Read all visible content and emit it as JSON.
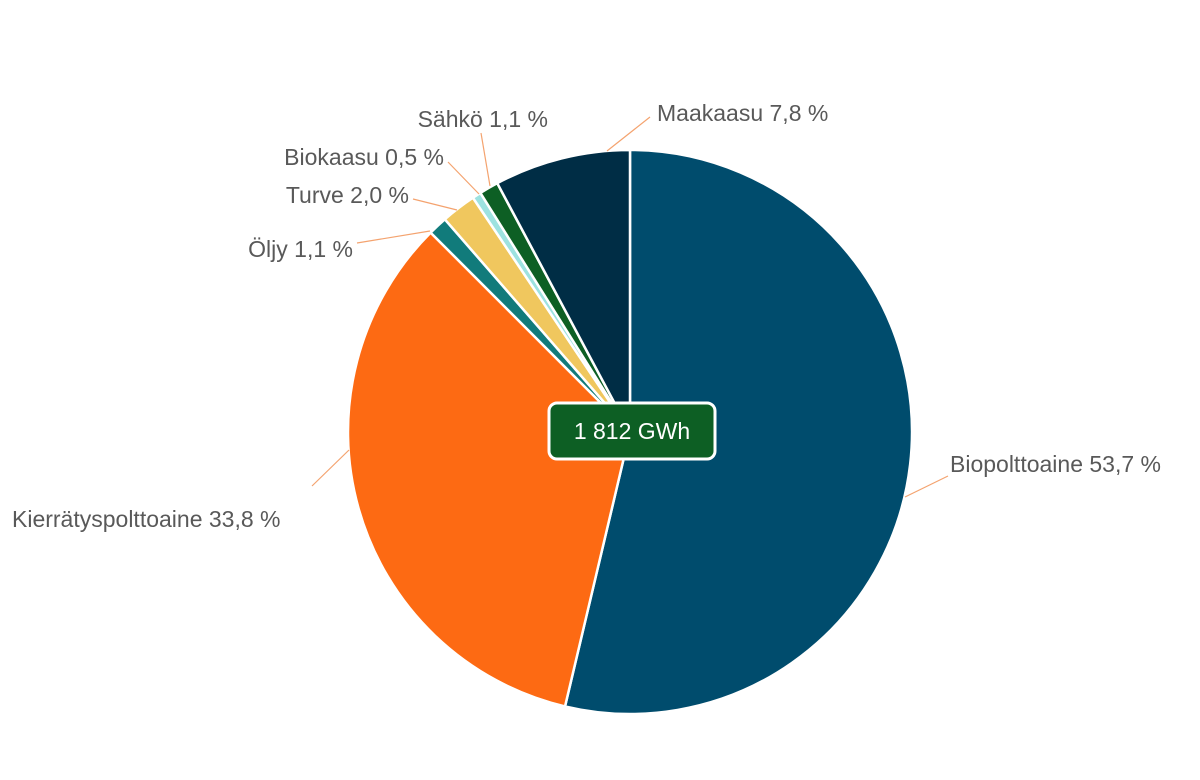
{
  "chart_data": {
    "type": "pie",
    "total_label": "1 812 GWh",
    "slices": [
      {
        "name": "Biopolttoaine",
        "value": 53.7,
        "label": "Biopolttoaine 53,7 %",
        "color": "#004c6d"
      },
      {
        "name": "Kierrätyspolttoaine",
        "value": 33.8,
        "label": "Kierrätyspolttoaine 33,8 %",
        "color": "#fd6a13"
      },
      {
        "name": "Öljy",
        "value": 1.1,
        "label": "Öljy 1,1 %",
        "color": "#117b7b"
      },
      {
        "name": "Turve",
        "value": 2.0,
        "label": "Turve 2,0 %",
        "color": "#f0c75e"
      },
      {
        "name": "Biokaasu",
        "value": 0.5,
        "label": "Biokaasu 0,5 %",
        "color": "#9de2e0"
      },
      {
        "name": "Sähkö",
        "value": 1.1,
        "label": "Sähkö 1,1 %",
        "color": "#0d5f24"
      },
      {
        "name": "Maakaasu",
        "value": 7.8,
        "label": "Maakaasu 7,8 %",
        "color": "#002d45"
      }
    ],
    "start_direction": "top",
    "order": "clockwise",
    "center_badge_color": "#0d5f24",
    "leader_line_color": "#f4a36f",
    "label_color": "#595959"
  }
}
